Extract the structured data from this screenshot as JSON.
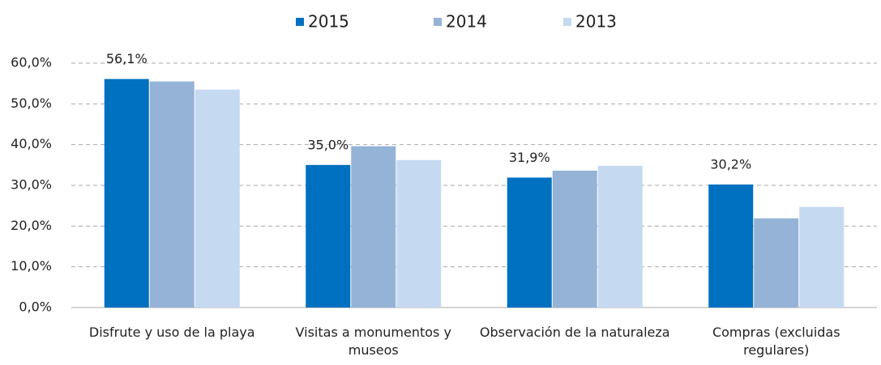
{
  "chart_data": {
    "type": "bar",
    "categories": [
      "Disfrute y uso de la playa",
      "Visitas a monumentos y museos",
      "Observación de la naturaleza",
      "Compras (excluidas regulares)"
    ],
    "series": [
      {
        "name": "2015",
        "color": "#0070c0",
        "values": [
          56.1,
          35.0,
          31.9,
          30.2
        ],
        "value_labels": [
          "56,1%",
          "35,0%",
          "31,9%",
          "30,2%"
        ]
      },
      {
        "name": "2014",
        "color": "#95b3d7",
        "values": [
          55.5,
          39.6,
          33.6,
          21.9
        ]
      },
      {
        "name": "2013",
        "color": "#c5d9f1",
        "values": [
          53.5,
          36.2,
          34.8,
          24.7
        ]
      }
    ],
    "ylim": [
      0,
      60
    ],
    "yticks": [
      {
        "value": 0,
        "label": "0,0%"
      },
      {
        "value": 10,
        "label": "10,0%"
      },
      {
        "value": 20,
        "label": "20,0%"
      },
      {
        "value": 30,
        "label": "30,0%"
      },
      {
        "value": 40,
        "label": "40,0%"
      },
      {
        "value": 50,
        "label": "50,0%"
      },
      {
        "value": 60,
        "label": "60,0%"
      }
    ],
    "grid": true,
    "legend": "top"
  }
}
